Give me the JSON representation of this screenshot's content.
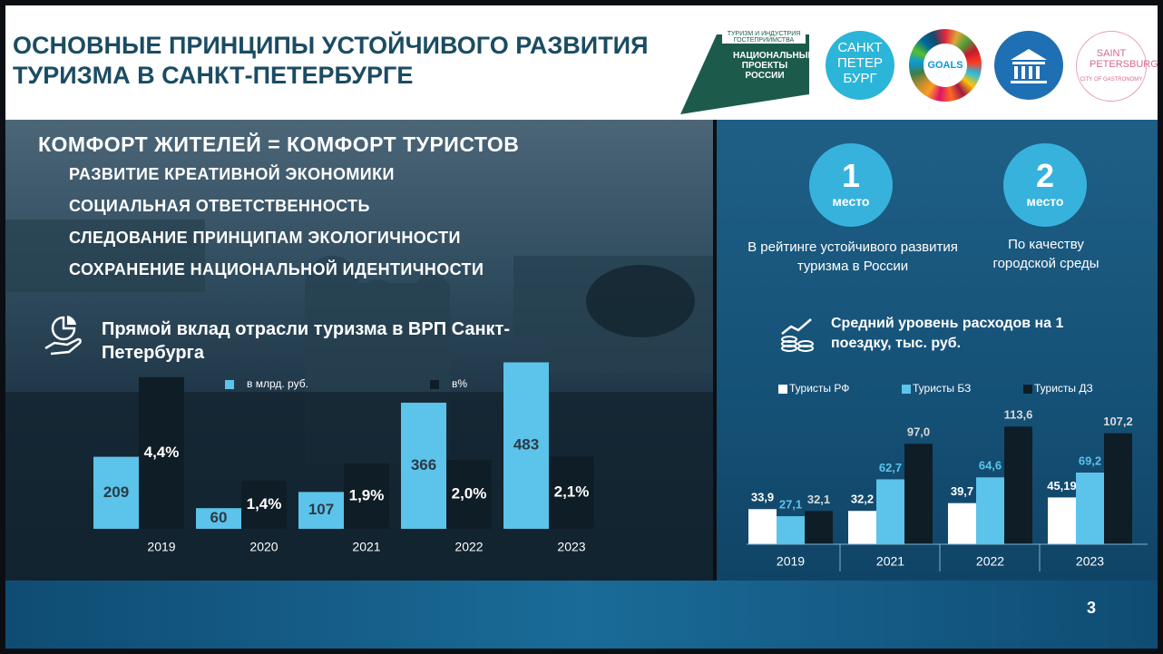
{
  "header": {
    "title": "ОСНОВНЫЕ ПРИНЦИПЫ УСТОЙЧИВОГО РАЗВИТИЯ ТУРИЗМА В САНКТ-ПЕТЕРБУРГЕ"
  },
  "logos": {
    "national_projects_top": "ТУРИЗМ И ИНДУСТРИЯ ГОСТЕПРИИМСТВА",
    "national_projects": "НАЦИОНАЛЬНЫЕ ПРОЕКТЫ РОССИИ",
    "spb": "САНКТ ПЕТЕР БУРГ",
    "sdg": "GOALS",
    "gastro_name": "SAINT PETERSBURG",
    "gastro_tag": "CITY OF GASTRONOMY"
  },
  "principles": {
    "heading": "КОМФОРТ ЖИТЕЛЕЙ = КОМФОРТ ТУРИСТОВ",
    "items": [
      "РАЗВИТИЕ КРЕАТИВНОЙ ЭКОНОМИКИ",
      "СОЦИАЛЬНАЯ ОТВЕТСТВЕННОСТЬ",
      "СЛЕДОВАНИЕ ПРИНЦИПАМ ЭКОЛОГИЧНОСТИ",
      "СОХРАНЕНИЕ НАЦИОНАЛЬНОЙ ИДЕНТИЧНОСТИ"
    ]
  },
  "rankings": [
    {
      "number": 1,
      "unit": "место",
      "caption": "В рейтинге устойчивого развития туризма в России"
    },
    {
      "number": 2,
      "unit": "место",
      "caption": "По качеству городской среды"
    }
  ],
  "page_number": 3,
  "chart_data": [
    {
      "type": "bar",
      "title": "Прямой вклад отрасли туризма в ВРП Санкт-Петербурга",
      "categories": [
        "2019",
        "2020",
        "2021",
        "2022",
        "2023"
      ],
      "series": [
        {
          "name": "в млрд. руб.",
          "color": "#5cc3ea",
          "values": [
            209,
            60,
            107,
            366,
            483
          ]
        },
        {
          "name": "в%",
          "color": "#0f1d27",
          "axis": "y2",
          "values": [
            4.4,
            1.4,
            1.9,
            2.0,
            2.1
          ],
          "value_labels": [
            "4,4%",
            "1,4%",
            "1,9%",
            "2,0%",
            "2,1%"
          ]
        }
      ],
      "ylim": [
        0,
        500
      ],
      "y2lim": [
        0,
        5
      ]
    },
    {
      "type": "bar",
      "title": "Средний уровень расходов на 1 поездку, тыс. руб.",
      "categories": [
        "2019",
        "2021",
        "2022",
        "2023"
      ],
      "series": [
        {
          "name": "Туристы РФ",
          "color": "#ffffff",
          "values": [
            33.9,
            32.2,
            39.7,
            45.19
          ],
          "value_labels": [
            "33,9",
            "32,2",
            "39,7",
            "45,19"
          ]
        },
        {
          "name": "Туристы БЗ",
          "color": "#5cc3ea",
          "values": [
            27.1,
            62.7,
            64.6,
            69.2
          ],
          "value_labels": [
            "27,1",
            "62,7",
            "64,6",
            "69,2"
          ]
        },
        {
          "name": "Туристы ДЗ",
          "color": "#0f1d27",
          "values": [
            32.1,
            97.0,
            113.6,
            107.2
          ],
          "value_labels": [
            "32,1",
            "97,0",
            "113,6",
            "107,2"
          ]
        }
      ],
      "ylim": [
        0,
        120
      ]
    }
  ]
}
